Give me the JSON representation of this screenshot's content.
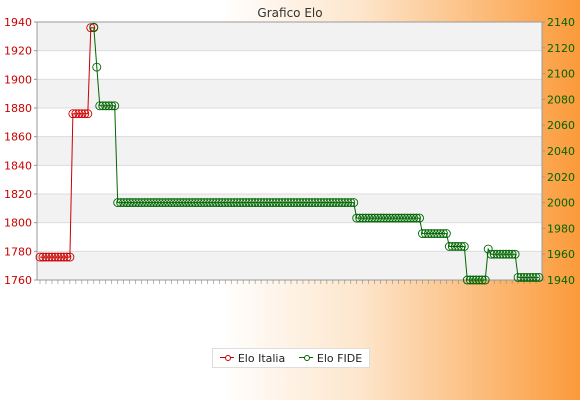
{
  "chart_data": {
    "type": "line",
    "title": "Grafico Elo",
    "y_left": {
      "min": 1760,
      "max": 1940,
      "step": 20,
      "color": "#cc0000"
    },
    "y_right": {
      "min": 1940,
      "max": 2140,
      "step": 20,
      "color": "#006600"
    },
    "grid": true,
    "legend_position": "bottom",
    "series": [
      {
        "name": "Elo Italia",
        "axis": "left",
        "color": "#cc0000",
        "values": [
          1776,
          1776,
          1776,
          1776,
          1776,
          1776,
          1776,
          1776,
          1776,
          1776,
          1776,
          1876,
          1876,
          1876,
          1876,
          1876,
          1876,
          1936,
          1936
        ]
      },
      {
        "name": "Elo FIDE",
        "axis": "right",
        "color": "#006600",
        "values": [
          null,
          null,
          null,
          null,
          null,
          null,
          null,
          null,
          null,
          null,
          null,
          null,
          null,
          null,
          null,
          null,
          null,
          null,
          2136,
          2105,
          2075,
          2075,
          2075,
          2075,
          2075,
          2075,
          2000,
          2000,
          2000,
          2000,
          2000,
          2000,
          2000,
          2000,
          2000,
          2000,
          2000,
          2000,
          2000,
          2000,
          2000,
          2000,
          2000,
          2000,
          2000,
          2000,
          2000,
          2000,
          2000,
          2000,
          2000,
          2000,
          2000,
          2000,
          2000,
          2000,
          2000,
          2000,
          2000,
          2000,
          2000,
          2000,
          2000,
          2000,
          2000,
          2000,
          2000,
          2000,
          2000,
          2000,
          2000,
          2000,
          2000,
          2000,
          2000,
          2000,
          2000,
          2000,
          2000,
          2000,
          2000,
          2000,
          2000,
          2000,
          2000,
          2000,
          2000,
          2000,
          2000,
          2000,
          2000,
          2000,
          2000,
          2000,
          2000,
          2000,
          2000,
          2000,
          2000,
          2000,
          2000,
          2000,
          2000,
          2000,
          2000,
          2000,
          1988,
          1988,
          1988,
          1988,
          1988,
          1988,
          1988,
          1988,
          1988,
          1988,
          1988,
          1988,
          1988,
          1988,
          1988,
          1988,
          1988,
          1988,
          1988,
          1988,
          1988,
          1988,
          1976,
          1976,
          1976,
          1976,
          1976,
          1976,
          1976,
          1976,
          1976,
          1966,
          1966,
          1966,
          1966,
          1966,
          1966,
          1940,
          1940,
          1940,
          1940,
          1940,
          1940,
          1940,
          1964,
          1960,
          1960,
          1960,
          1960,
          1960,
          1960,
          1960,
          1960,
          1960,
          1942,
          1942,
          1942,
          1942,
          1942,
          1942,
          1942,
          1942
        ]
      }
    ]
  }
}
